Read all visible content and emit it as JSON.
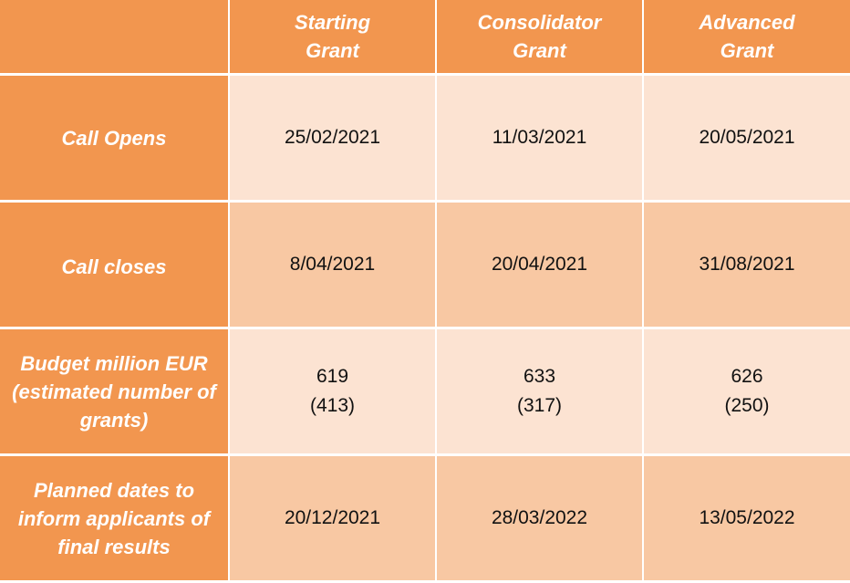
{
  "header": {
    "corner": "",
    "columns": [
      {
        "line1": "Starting",
        "line2": "Grant"
      },
      {
        "line1": "Consolidator",
        "line2": "Grant"
      },
      {
        "line1": "Advanced",
        "line2": "Grant"
      }
    ]
  },
  "rows": [
    {
      "label": {
        "line1": "Call Opens"
      },
      "values": [
        "25/02/2021",
        "11/03/2021",
        "20/05/2021"
      ]
    },
    {
      "label": {
        "line1": "Call closes"
      },
      "values": [
        "8/04/2021",
        "20/04/2021",
        "31/08/2021"
      ]
    },
    {
      "label": {
        "line1": "Budget million EUR",
        "line2": "(estimated number of",
        "line3": "grants)"
      },
      "values": [
        {
          "amount": "619",
          "grants": "(413)"
        },
        {
          "amount": "633",
          "grants": "(317)"
        },
        {
          "amount": "626",
          "grants": "(250)"
        }
      ]
    },
    {
      "label": {
        "line1": "Planned dates to",
        "line2": "inform applicants of",
        "line3": "final results"
      },
      "values": [
        "20/12/2021",
        "28/03/2022",
        "13/05/2022"
      ]
    }
  ],
  "colors": {
    "header_orange": "#f2964f",
    "light_peach": "#fce3d2",
    "mid_peach": "#f8c8a3"
  }
}
